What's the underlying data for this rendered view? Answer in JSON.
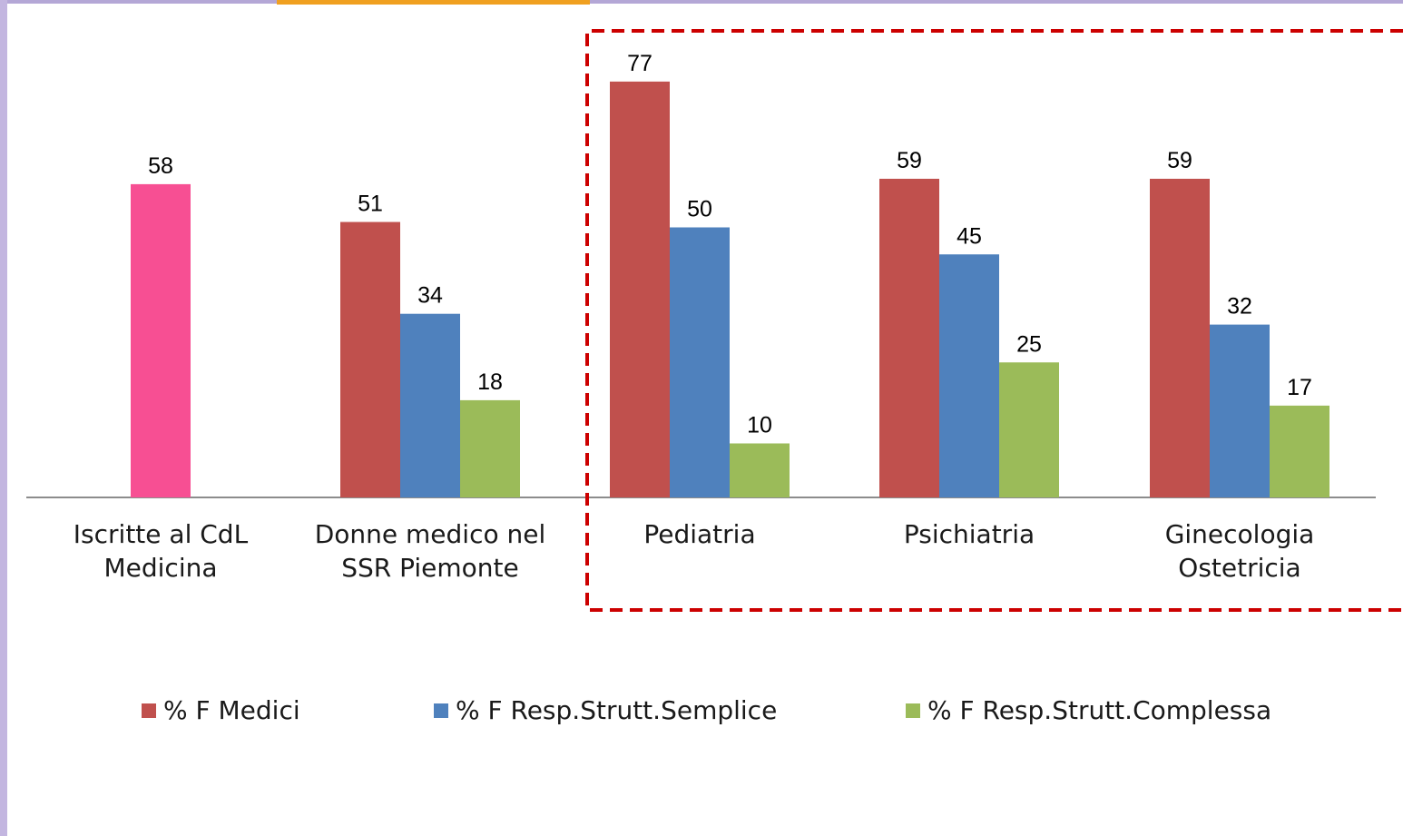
{
  "chart_data": {
    "type": "bar",
    "categories": [
      [
        "Iscritte al CdL",
        "Medicina"
      ],
      [
        "Donne medico nel",
        "SSR Piemonte"
      ],
      [
        "Pediatria"
      ],
      [
        "Psichiatria"
      ],
      [
        "Ginecologia",
        "Ostetricia"
      ]
    ],
    "series": [
      {
        "name": "% F Medici",
        "color": "#c0504d",
        "colors": [
          "#f74f93",
          "#c0504d",
          "#c0504d",
          "#c0504d",
          "#c0504d"
        ],
        "values": [
          58,
          51,
          77,
          59,
          59
        ]
      },
      {
        "name": "% F Resp.Strutt.Semplice",
        "color": "#4f81bd",
        "values": [
          null,
          34,
          50,
          45,
          32
        ]
      },
      {
        "name": "% F Resp.Strutt.Complessa",
        "color": "#9bbb59",
        "values": [
          null,
          18,
          10,
          25,
          17
        ]
      }
    ],
    "ylim": [
      0,
      80
    ],
    "legend": "bottom"
  }
}
